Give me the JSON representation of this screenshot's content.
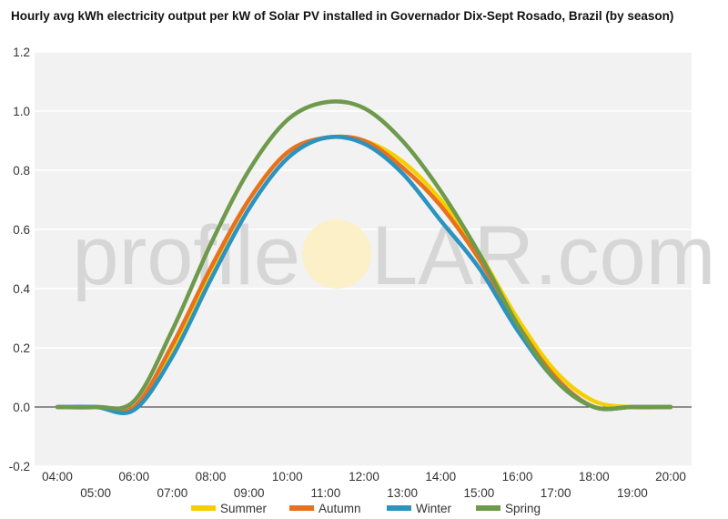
{
  "watermark": {
    "left": "profile",
    "mid": "O",
    "right": "LAR.com"
  },
  "chart_data": {
    "type": "line",
    "title": "Hourly avg kWh electricity output per kW of Solar PV installed in Governador Dix-Sept Rosado, Brazil (by season)",
    "xlabel": "",
    "ylabel": "",
    "x": [
      "04:00",
      "05:00",
      "06:00",
      "07:00",
      "08:00",
      "09:00",
      "10:00",
      "11:00",
      "12:00",
      "13:00",
      "14:00",
      "15:00",
      "16:00",
      "17:00",
      "18:00",
      "19:00",
      "20:00"
    ],
    "ylim": [
      -0.2,
      1.2
    ],
    "yticks": [
      "-0.2",
      "0.0",
      "0.2",
      "0.4",
      "0.6",
      "0.8",
      "1.0",
      "1.2"
    ],
    "ytick_values": [
      -0.2,
      0.0,
      0.2,
      0.4,
      0.6,
      0.8,
      1.0,
      1.2
    ],
    "grid": true,
    "legend_position": "bottom",
    "series": [
      {
        "name": "Summer",
        "color": "#f5d000",
        "values": [
          0.0,
          0.0,
          0.0,
          0.19,
          0.46,
          0.7,
          0.86,
          0.91,
          0.9,
          0.83,
          0.7,
          0.52,
          0.3,
          0.12,
          0.02,
          0.0,
          0.0
        ]
      },
      {
        "name": "Autumn",
        "color": "#e8711e",
        "values": [
          0.0,
          0.0,
          0.0,
          0.21,
          0.47,
          0.7,
          0.86,
          0.91,
          0.9,
          0.81,
          0.68,
          0.5,
          0.28,
          0.1,
          0.0,
          0.0,
          0.0
        ]
      },
      {
        "name": "Winter",
        "color": "#2b93c0",
        "values": [
          0.0,
          0.0,
          -0.01,
          0.17,
          0.43,
          0.67,
          0.84,
          0.91,
          0.89,
          0.79,
          0.63,
          0.47,
          0.26,
          0.09,
          0.0,
          0.0,
          0.0
        ]
      },
      {
        "name": "Spring",
        "color": "#6e9a4c",
        "values": [
          0.0,
          0.0,
          0.02,
          0.26,
          0.55,
          0.8,
          0.97,
          1.03,
          1.01,
          0.9,
          0.73,
          0.52,
          0.28,
          0.09,
          0.0,
          0.0,
          0.0
        ]
      }
    ]
  }
}
